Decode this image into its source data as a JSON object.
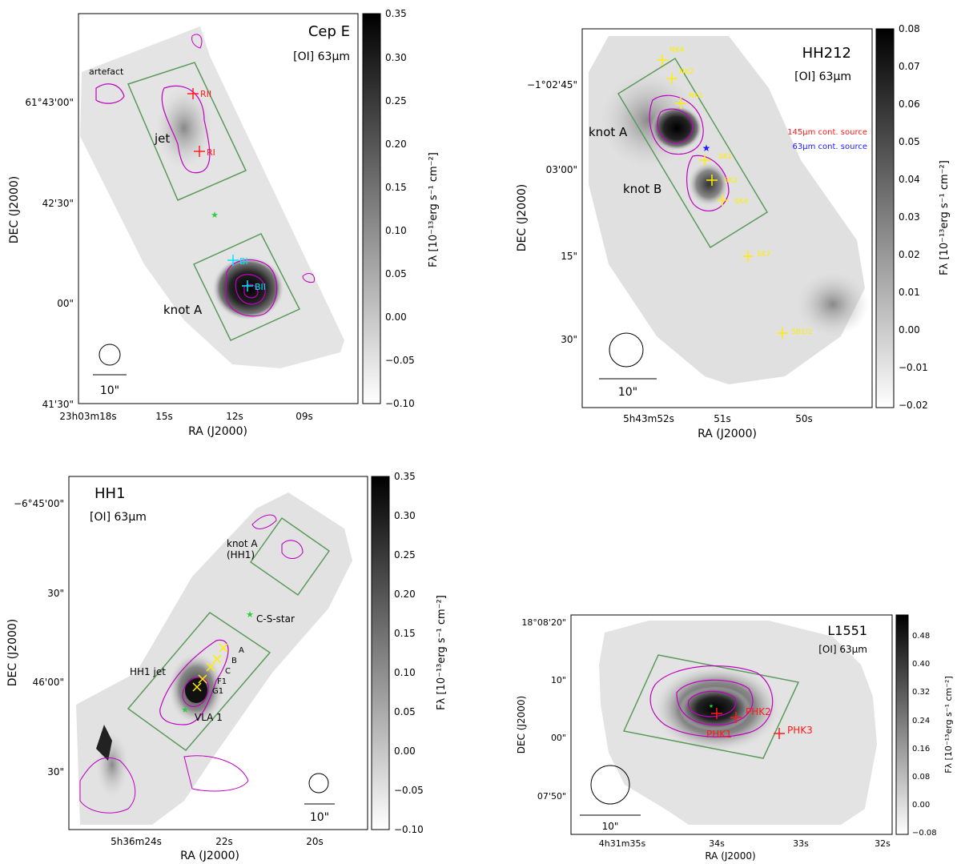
{
  "panels": {
    "cepe": {
      "title": "Cep E",
      "line": "[OI] 63μm",
      "ylabel": "DEC (J2000)",
      "xlabel": "RA (J2000)",
      "yticks": [
        "61°43'00\"",
        "42'30\"",
        "00\"",
        "41'30\""
      ],
      "xticks": [
        "23h03m18s",
        "15s",
        "12s",
        "09s"
      ],
      "beam": "10\"",
      "cbar_ticks": [
        "0.35",
        "0.30",
        "0.25",
        "0.20",
        "0.15",
        "0.10",
        "0.05",
        "0.00",
        "−0.05",
        "−0.10"
      ],
      "cbar_label": "Fλ [10⁻¹³erg s⁻¹ cm⁻²]",
      "labels": {
        "artefact": "artefact",
        "jet": "jet",
        "knotA": "knot A"
      },
      "markers": [
        {
          "name": "RII",
          "color": "#ff2020"
        },
        {
          "name": "RI",
          "color": "#ff2020"
        },
        {
          "name": "BI",
          "color": "#00e5ff"
        },
        {
          "name": "BII",
          "color": "#00e5ff"
        }
      ]
    },
    "hh212": {
      "title": "HH212",
      "line": "[OI] 63μm",
      "ylabel": "DEC (J2000)",
      "xlabel": "RA (J2000)",
      "yticks": [
        "−1°02'45\"",
        "03'00\"",
        "15\"",
        "30\""
      ],
      "xticks": [
        "5h43m52s",
        "51s",
        "50s"
      ],
      "beam": "10\"",
      "cbar_ticks": [
        "0.08",
        "0.07",
        "0.06",
        "0.05",
        "0.04",
        "0.03",
        "0.02",
        "0.01",
        "0.00",
        "−0.01",
        "−0.02"
      ],
      "cbar_label": "Fλ [10⁻¹³erg s⁻¹ cm⁻²]",
      "labels": {
        "knotA": "knot A",
        "knotB": "knot B",
        "src145": "145μm cont. source",
        "src63": "63μm cont. source"
      },
      "markers": [
        "NK4",
        "NK2",
        "NK1",
        "SK1",
        "SK2",
        "SK4",
        "SK7",
        "SB1/2"
      ]
    },
    "hh1": {
      "title": "HH1",
      "line": "[OI] 63μm",
      "ylabel": "DEC (J2000)",
      "xlabel": "RA (J2000)",
      "yticks": [
        "−6°45'00\"",
        "30\"",
        "46'00\"",
        "30\""
      ],
      "xticks": [
        "5h36m24s",
        "22s",
        "20s"
      ],
      "beam": "10\"",
      "cbar_ticks": [
        "0.35",
        "0.30",
        "0.25",
        "0.20",
        "0.15",
        "0.10",
        "0.05",
        "0.00",
        "−0.05",
        "−0.10"
      ],
      "cbar_label": "Fλ [10⁻¹³erg s⁻¹ cm⁻²]",
      "labels": {
        "knotA1": "knot A",
        "knotA2": "(HH1)",
        "csstar": "C-S-star",
        "jet": "HH1 jet",
        "vla": "VLA 1"
      },
      "markers": [
        "A",
        "B",
        "C",
        "F1",
        "G1"
      ]
    },
    "l1551": {
      "title": "L1551",
      "line": "[OI] 63μm",
      "ylabel": "DEC (J2000)",
      "xlabel": "RA (J2000)",
      "yticks": [
        "18°08'20\"",
        "10\"",
        "00\"",
        "07'50\""
      ],
      "xticks": [
        "4h31m35s",
        "34s",
        "33s",
        "32s"
      ],
      "beam": "10\"",
      "cbar_ticks": [
        "0.48",
        "0.40",
        "0.32",
        "0.24",
        "0.16",
        "0.08",
        "0.00",
        "−0.08"
      ],
      "cbar_label": "Fλ [10⁻¹³erg s⁻¹ cm⁻²]",
      "markers": [
        "PHK2",
        "PHK1",
        "PHK3"
      ]
    }
  },
  "colors": {
    "contour": "#c000c0",
    "box": "#5a9a5a",
    "yellow": "#ffee00",
    "red": "#ff1a1a",
    "cyan": "#00e5ff",
    "blue": "#1a1aff",
    "star": "#2ecc40"
  }
}
